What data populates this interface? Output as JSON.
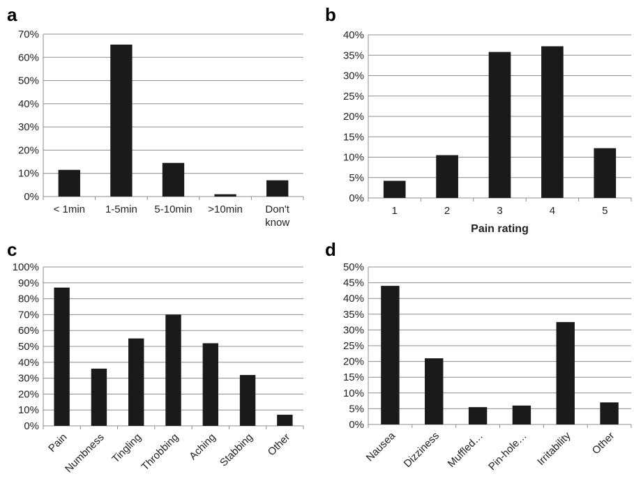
{
  "chart_data": [
    {
      "panel": "a",
      "type": "bar",
      "categories": [
        "< 1min",
        "1-5min",
        "5-10min",
        ">10min",
        "Don't know"
      ],
      "values": [
        11.5,
        65.5,
        14.5,
        1,
        7
      ],
      "unit": "%",
      "ylim": [
        0,
        70
      ],
      "yticks": [
        "0%",
        "10%",
        "20%",
        "30%",
        "40%",
        "50%",
        "60%",
        "70%"
      ],
      "xlabel": "",
      "grid": true,
      "bar_color": "#1a1a1a"
    },
    {
      "panel": "b",
      "type": "bar",
      "categories": [
        "1",
        "2",
        "3",
        "4",
        "5"
      ],
      "values": [
        4.2,
        10.5,
        35.8,
        37.2,
        12.2
      ],
      "unit": "%",
      "ylim": [
        0,
        40
      ],
      "yticks": [
        "0%",
        "5%",
        "10%",
        "15%",
        "20%",
        "25%",
        "30%",
        "35%",
        "40%"
      ],
      "xlabel": "Pain rating",
      "grid": true,
      "bar_color": "#1a1a1a"
    },
    {
      "panel": "c",
      "type": "bar",
      "categories": [
        "Pain",
        "Numbness",
        "Tingling",
        "Throbbing",
        "Aching",
        "Stabbing",
        "Other"
      ],
      "values": [
        87,
        36,
        55,
        70,
        52,
        32,
        7
      ],
      "unit": "%",
      "ylim": [
        0,
        100
      ],
      "yticks": [
        "0%",
        "10%",
        "20%",
        "30%",
        "40%",
        "50%",
        "60%",
        "70%",
        "80%",
        "90%",
        "100%"
      ],
      "xlabel": "",
      "grid": true,
      "bar_color": "#1a1a1a"
    },
    {
      "panel": "d",
      "type": "bar",
      "categories": [
        "Nausea",
        "Dizziness",
        "Muffled…",
        "Pin-hole…",
        "Irritability",
        "Other"
      ],
      "values": [
        44,
        21,
        5.5,
        6,
        32.5,
        7
      ],
      "unit": "%",
      "ylim": [
        0,
        50
      ],
      "yticks": [
        "0%",
        "5%",
        "10%",
        "15%",
        "20%",
        "25%",
        "30%",
        "35%",
        "40%",
        "45%",
        "50%"
      ],
      "xlabel": "",
      "grid": true,
      "bar_color": "#1a1a1a"
    }
  ]
}
